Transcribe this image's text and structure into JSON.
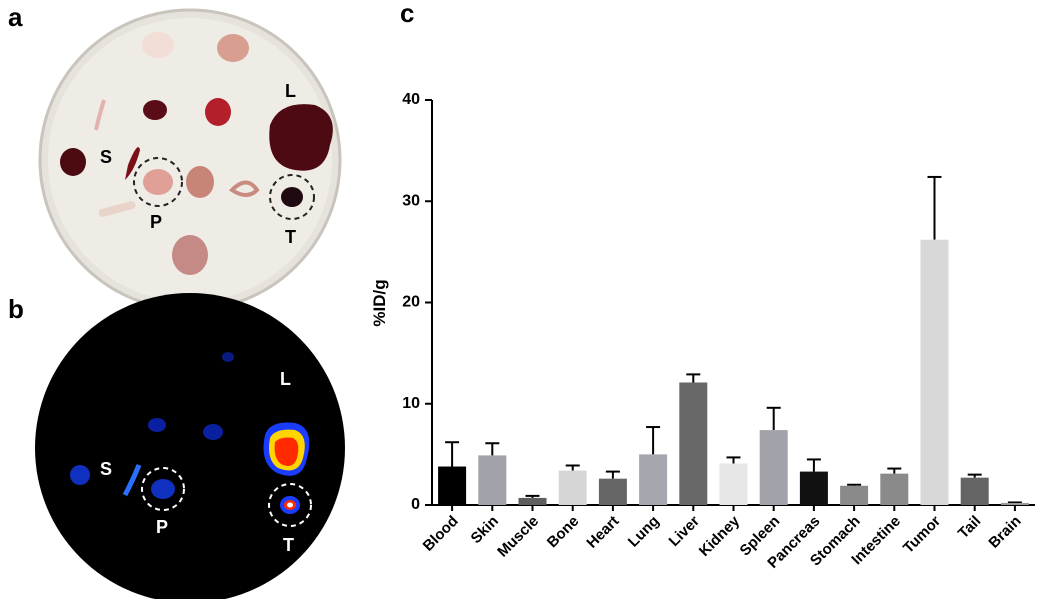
{
  "panels": [
    {
      "label": "a",
      "markers": [
        "L",
        "S",
        "P",
        "T"
      ]
    },
    {
      "label": "b",
      "markers": [
        "L",
        "S",
        "P",
        "T"
      ]
    },
    {
      "label": "c"
    }
  ],
  "chart_data": {
    "type": "bar",
    "ylabel": "%ID/g",
    "categories": [
      "Blood",
      "Skin",
      "Muscle",
      "Bone",
      "Heart",
      "Lung",
      "Liver",
      "Kidney",
      "Spleen",
      "Pancreas",
      "Stomach",
      "Intestine",
      "Tumor",
      "Tail",
      "Brain"
    ],
    "values": [
      3.8,
      4.9,
      0.7,
      3.4,
      2.6,
      5.0,
      12.1,
      4.1,
      7.4,
      3.3,
      1.9,
      3.1,
      26.2,
      2.7,
      0.2
    ],
    "errors": [
      2.4,
      1.2,
      0.2,
      0.5,
      0.7,
      2.7,
      0.8,
      0.6,
      2.2,
      1.2,
      0.1,
      0.5,
      6.2,
      0.3,
      0.05
    ],
    "colors": [
      "#000000",
      "#a2a2aa",
      "#5e5e5e",
      "#d6d6d6",
      "#666666",
      "#a6a6ae",
      "#686868",
      "#e6e6e6",
      "#a2a2aa",
      "#111111",
      "#8a8a8a",
      "#8a8a8a",
      "#d8d8d8",
      "#646464",
      "#9a9a9a"
    ],
    "ylim": [
      0,
      40
    ],
    "yticks": [
      0,
      10,
      20,
      30,
      40
    ]
  }
}
